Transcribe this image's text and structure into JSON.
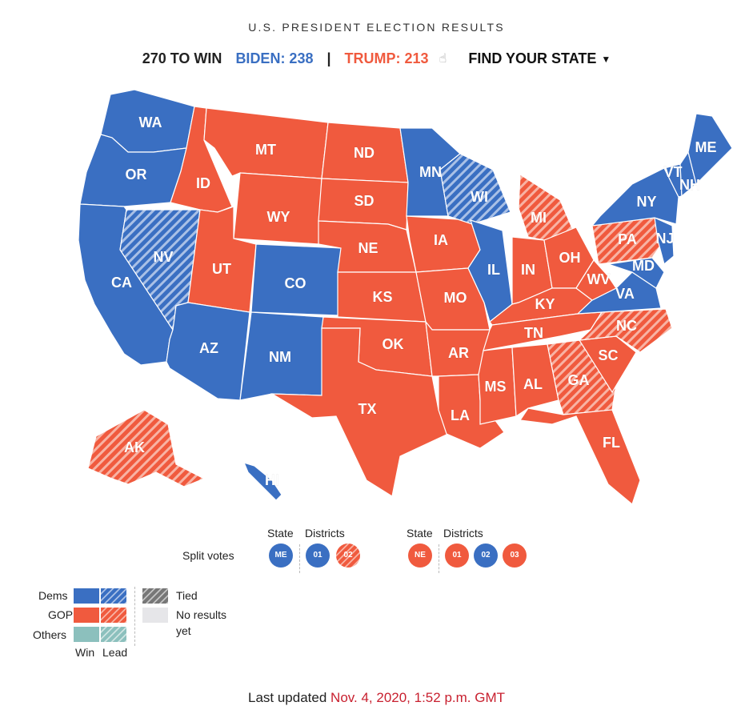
{
  "header": {
    "title": "U.S. PRESIDENT ELECTION RESULTS",
    "to_win": "270 TO WIN",
    "biden": "BIDEN: 238",
    "separator": "|",
    "trump": "TRUMP: 213",
    "find_state": "FIND YOUR STATE",
    "hand_icon": "pointer-hand-icon"
  },
  "colors": {
    "dem": "#3a6fc2",
    "gop": "#f05a3e",
    "others": "#8cc0bd",
    "tied": "#777777",
    "no_results": "#e6e6e9"
  },
  "states": [
    {
      "abbr": "WA",
      "status": "dem-win"
    },
    {
      "abbr": "OR",
      "status": "dem-win"
    },
    {
      "abbr": "CA",
      "status": "dem-win"
    },
    {
      "abbr": "NV",
      "status": "dem-lead"
    },
    {
      "abbr": "ID",
      "status": "gop-win"
    },
    {
      "abbr": "MT",
      "status": "gop-win"
    },
    {
      "abbr": "WY",
      "status": "gop-win"
    },
    {
      "abbr": "UT",
      "status": "gop-win"
    },
    {
      "abbr": "AZ",
      "status": "dem-win"
    },
    {
      "abbr": "CO",
      "status": "dem-win"
    },
    {
      "abbr": "NM",
      "status": "dem-win"
    },
    {
      "abbr": "ND",
      "status": "gop-win"
    },
    {
      "abbr": "SD",
      "status": "gop-win"
    },
    {
      "abbr": "NE",
      "status": "gop-win"
    },
    {
      "abbr": "KS",
      "status": "gop-win"
    },
    {
      "abbr": "OK",
      "status": "gop-win"
    },
    {
      "abbr": "TX",
      "status": "gop-win"
    },
    {
      "abbr": "MN",
      "status": "dem-win"
    },
    {
      "abbr": "IA",
      "status": "gop-win"
    },
    {
      "abbr": "MO",
      "status": "gop-win"
    },
    {
      "abbr": "AR",
      "status": "gop-win"
    },
    {
      "abbr": "LA",
      "status": "gop-win"
    },
    {
      "abbr": "WI",
      "status": "dem-lead"
    },
    {
      "abbr": "IL",
      "status": "dem-win"
    },
    {
      "abbr": "MI",
      "status": "gop-lead"
    },
    {
      "abbr": "IN",
      "status": "gop-win"
    },
    {
      "abbr": "OH",
      "status": "gop-win"
    },
    {
      "abbr": "KY",
      "status": "gop-win"
    },
    {
      "abbr": "TN",
      "status": "gop-win"
    },
    {
      "abbr": "MS",
      "status": "gop-win"
    },
    {
      "abbr": "AL",
      "status": "gop-win"
    },
    {
      "abbr": "GA",
      "status": "gop-lead"
    },
    {
      "abbr": "FL",
      "status": "gop-win"
    },
    {
      "abbr": "SC",
      "status": "gop-win"
    },
    {
      "abbr": "NC",
      "status": "gop-lead"
    },
    {
      "abbr": "VA",
      "status": "dem-win"
    },
    {
      "abbr": "WV",
      "status": "gop-win"
    },
    {
      "abbr": "PA",
      "status": "gop-lead"
    },
    {
      "abbr": "MD",
      "status": "dem-win"
    },
    {
      "abbr": "NJ",
      "status": "dem-win"
    },
    {
      "abbr": "NY",
      "status": "dem-win"
    },
    {
      "abbr": "VT",
      "status": "dem-win"
    },
    {
      "abbr": "NH",
      "status": "dem-win"
    },
    {
      "abbr": "ME",
      "status": "dem-win"
    },
    {
      "abbr": "AK",
      "status": "gop-lead"
    },
    {
      "abbr": "HI",
      "status": "dem-win"
    }
  ],
  "split_votes": {
    "label": "Split votes",
    "state_header": "State",
    "districts_header": "Districts",
    "maine": {
      "state": "ME",
      "state_status": "dem-win",
      "districts": [
        {
          "label": "01",
          "status": "dem-win"
        },
        {
          "label": "02",
          "status": "gop-lead"
        }
      ]
    },
    "nebraska": {
      "state": "NE",
      "state_status": "gop-win",
      "districts": [
        {
          "label": "01",
          "status": "gop-win"
        },
        {
          "label": "02",
          "status": "dem-win"
        },
        {
          "label": "03",
          "status": "gop-win"
        }
      ]
    }
  },
  "legend": {
    "dems": "Dems",
    "gop": "GOP",
    "others": "Others",
    "win": "Win",
    "lead": "Lead",
    "tied": "Tied",
    "no_results_1": "No results",
    "no_results_2": "yet"
  },
  "footer": {
    "prefix": "Last updated",
    "timestamp": "Nov. 4, 2020, 1:52 p.m. GMT"
  }
}
